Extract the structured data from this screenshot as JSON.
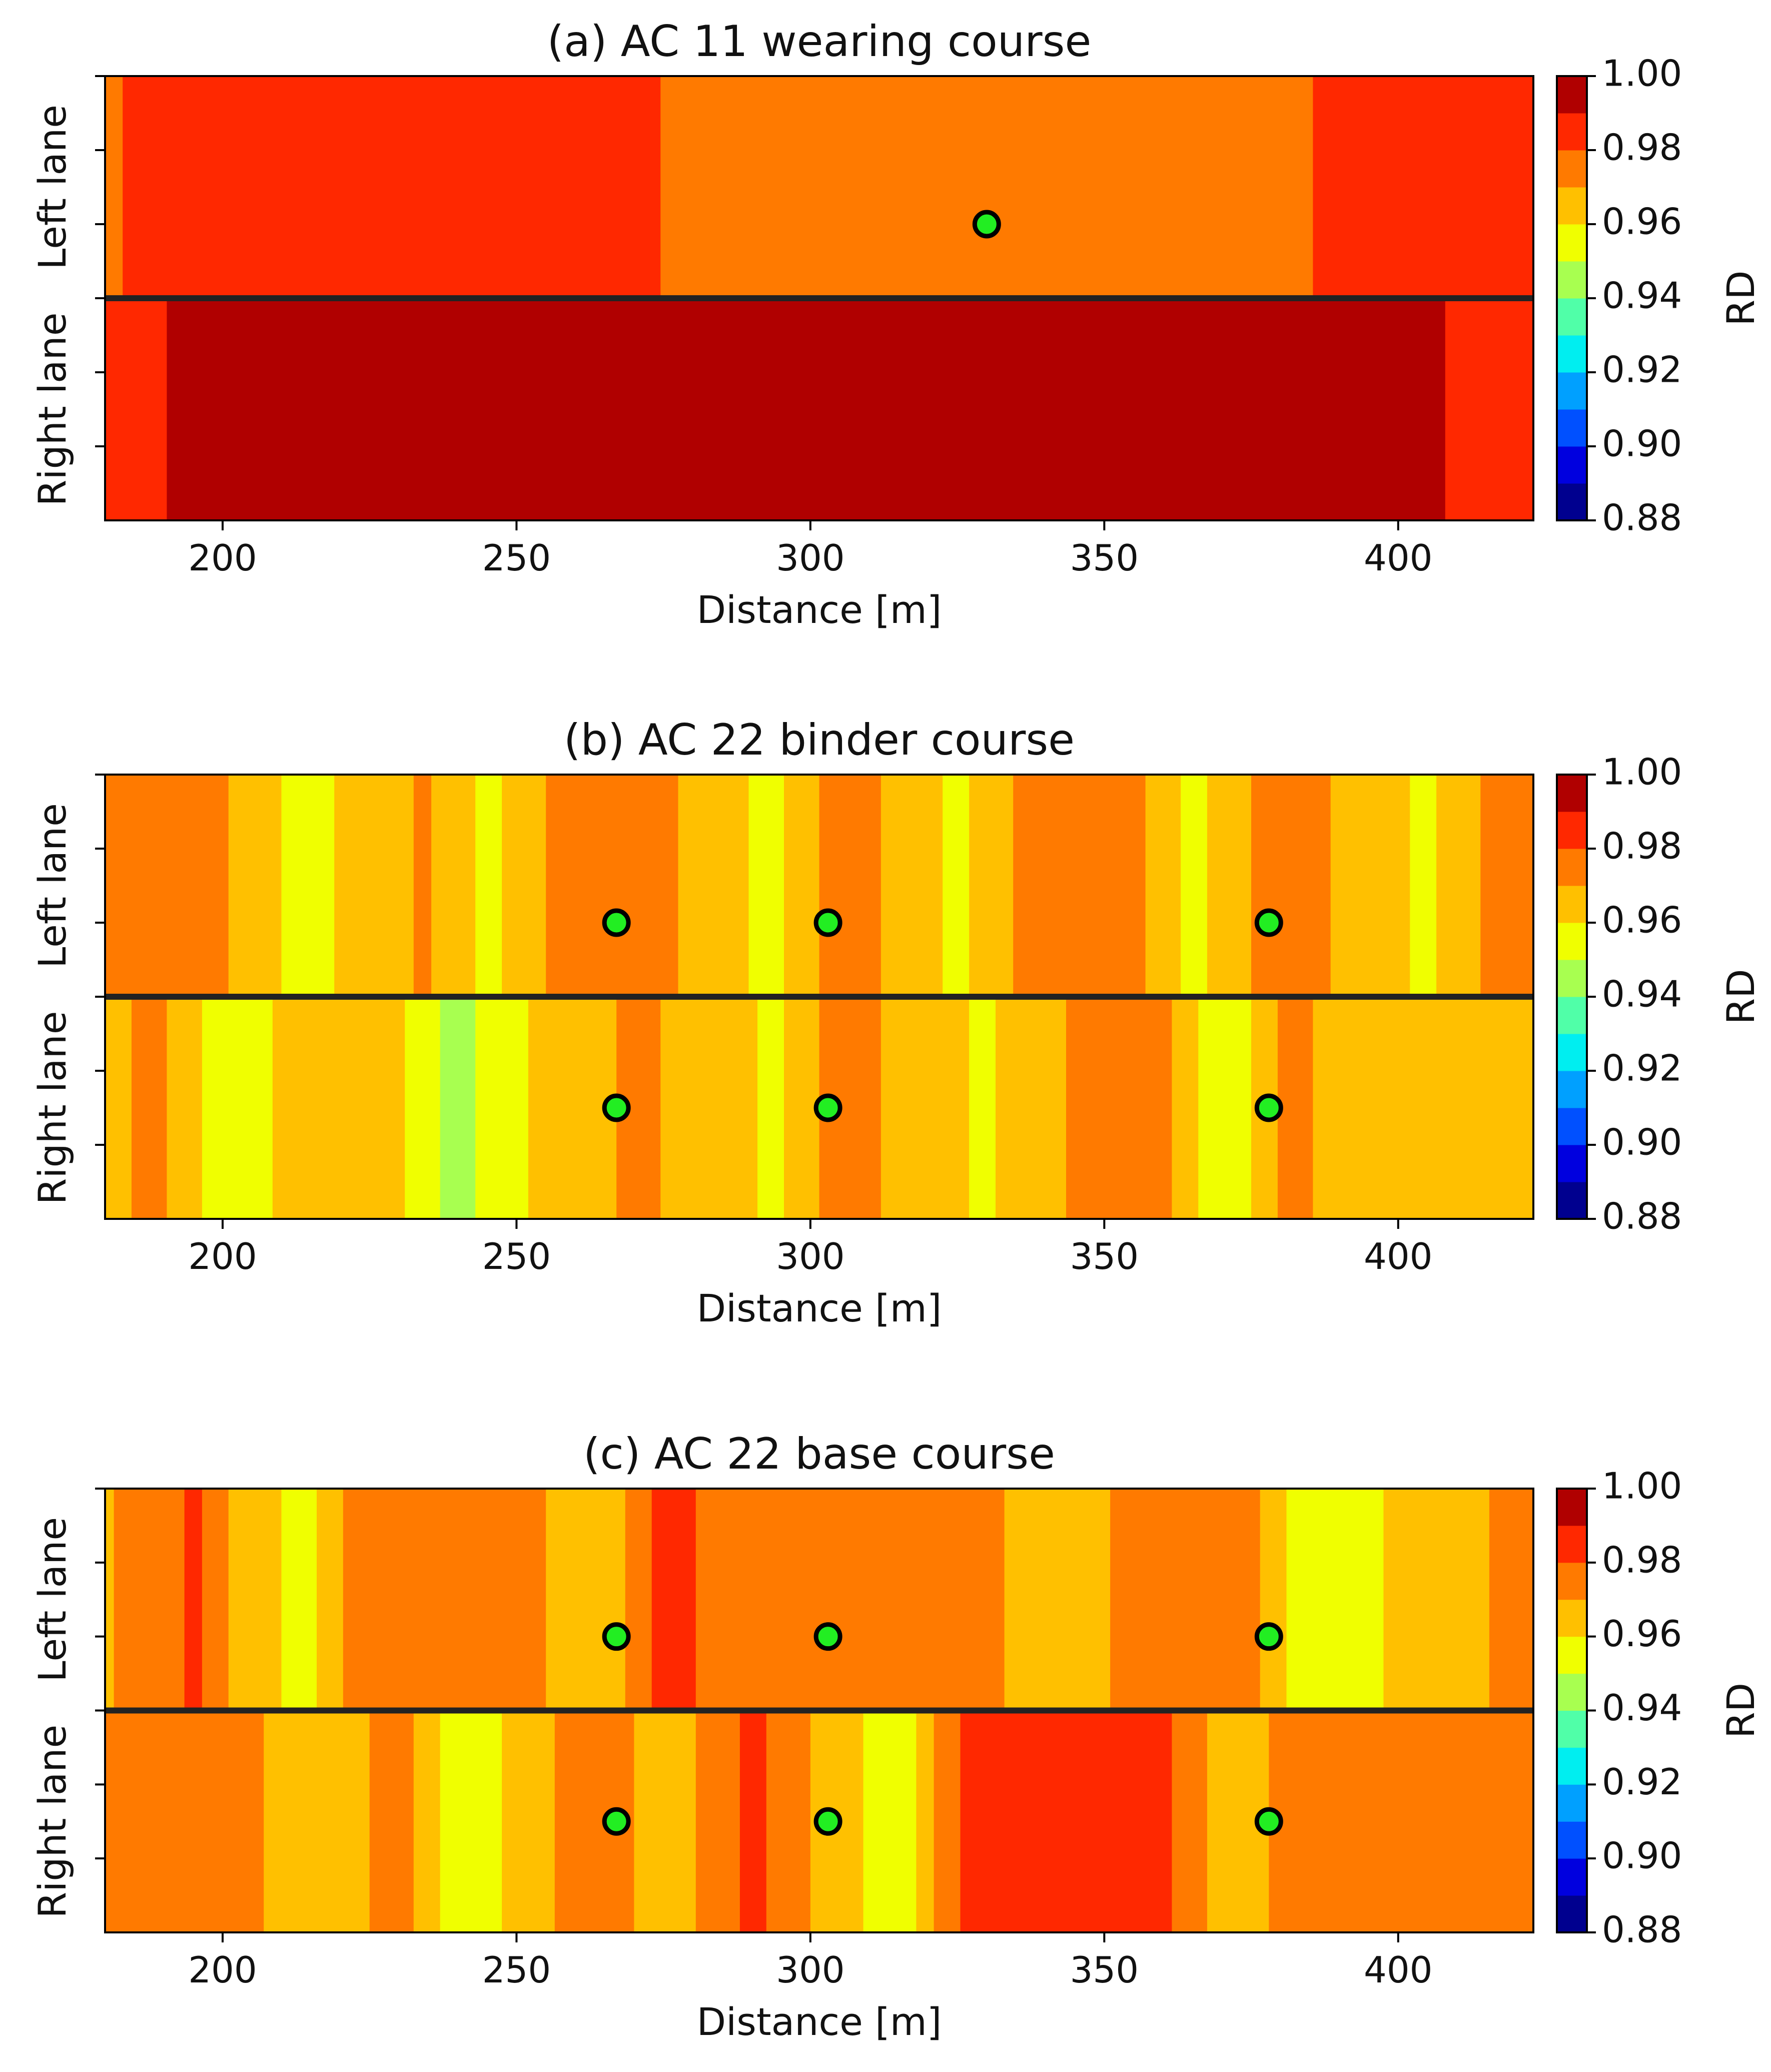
{
  "chart_data": [
    {
      "type": "heatmap",
      "subtype": "filled-contour",
      "title": "(a) AC 11 wearing course",
      "xlabel": "Distance [m]",
      "xlim": [
        180,
        423
      ],
      "xticks": [
        200,
        250,
        300,
        350,
        400
      ],
      "ylim": [
        0,
        3
      ],
      "y_category_labels": [
        "Left lane",
        "Right lane"
      ],
      "lane_divider_y": 1.5,
      "colorbar": {
        "label": "RD",
        "range": [
          0.88,
          1.0
        ],
        "step": 0.01,
        "ticks": [
          "1.00",
          "0.98",
          "0.96",
          "0.94",
          "0.92",
          "0.90",
          "0.88"
        ]
      },
      "lanes": {
        "left": {
          "profile": [
            [
              180,
              0.975
            ],
            [
              185,
              0.985
            ],
            [
              200,
              0.985
            ],
            [
              250,
              0.982
            ],
            [
              300,
              0.978
            ],
            [
              320,
              0.974
            ],
            [
              330,
              0.972
            ],
            [
              350,
              0.977
            ],
            [
              375,
              0.978
            ],
            [
              400,
              0.983
            ],
            [
              423,
              0.985
            ]
          ]
        },
        "right": {
          "profile": [
            [
              180,
              0.985
            ],
            [
              188,
              0.988
            ],
            [
              195,
              0.994
            ],
            [
              240,
              0.995
            ],
            [
              300,
              0.995
            ],
            [
              380,
              0.994
            ],
            [
              400,
              0.993
            ],
            [
              410,
              0.989
            ],
            [
              423,
              0.986
            ]
          ]
        }
      },
      "core_points": [
        {
          "x": 330,
          "lane": "Left lane"
        }
      ]
    },
    {
      "type": "heatmap",
      "subtype": "filled-contour",
      "title": "(b) AC 22 binder course",
      "xlabel": "Distance [m]",
      "xlim": [
        180,
        423
      ],
      "xticks": [
        200,
        250,
        300,
        350,
        400
      ],
      "ylim": [
        0,
        3
      ],
      "y_category_labels": [
        "Left lane",
        "Right lane"
      ],
      "lane_divider_y": 1.5,
      "colorbar": {
        "label": "RD",
        "range": [
          0.88,
          1.0
        ],
        "step": 0.01,
        "ticks": [
          "1.00",
          "0.98",
          "0.96",
          "0.94",
          "0.92",
          "0.90",
          "0.88"
        ]
      },
      "lanes": {
        "left": {
          "profile": [
            [
              180,
              0.97
            ],
            [
              190,
              0.976
            ],
            [
              200,
              0.972
            ],
            [
              212,
              0.958
            ],
            [
              225,
              0.962
            ],
            [
              235,
              0.972
            ],
            [
              245,
              0.956
            ],
            [
              260,
              0.976
            ],
            [
              270,
              0.978
            ],
            [
              285,
              0.962
            ],
            [
              295,
              0.958
            ],
            [
              305,
              0.975
            ],
            [
              318,
              0.965
            ],
            [
              325,
              0.958
            ],
            [
              340,
              0.976
            ],
            [
              355,
              0.972
            ],
            [
              365,
              0.958
            ],
            [
              380,
              0.975
            ],
            [
              395,
              0.966
            ],
            [
              405,
              0.958
            ],
            [
              415,
              0.972
            ],
            [
              423,
              0.974
            ]
          ]
        },
        "right": {
          "profile": [
            [
              180,
              0.968
            ],
            [
              190,
              0.972
            ],
            [
              200,
              0.952
            ],
            [
              210,
              0.962
            ],
            [
              225,
              0.968
            ],
            [
              240,
              0.946
            ],
            [
              255,
              0.964
            ],
            [
              270,
              0.972
            ],
            [
              282,
              0.966
            ],
            [
              295,
              0.958
            ],
            [
              305,
              0.975
            ],
            [
              318,
              0.966
            ],
            [
              330,
              0.958
            ],
            [
              345,
              0.972
            ],
            [
              360,
              0.975
            ],
            [
              370,
              0.95
            ],
            [
              380,
              0.972
            ],
            [
              395,
              0.967
            ],
            [
              410,
              0.962
            ],
            [
              423,
              0.96
            ]
          ]
        }
      },
      "core_points": [
        {
          "x": 267,
          "lane": "Left lane"
        },
        {
          "x": 303,
          "lane": "Left lane"
        },
        {
          "x": 378,
          "lane": "Left lane"
        },
        {
          "x": 267,
          "lane": "Right lane"
        },
        {
          "x": 303,
          "lane": "Right lane"
        },
        {
          "x": 378,
          "lane": "Right lane"
        }
      ]
    },
    {
      "type": "heatmap",
      "subtype": "filled-contour",
      "title": "(c) AC 22 base course",
      "xlabel": "Distance [m]",
      "xlim": [
        180,
        423
      ],
      "xticks": [
        200,
        250,
        300,
        350,
        400
      ],
      "ylim": [
        0,
        3
      ],
      "y_category_labels": [
        "Left lane",
        "Right lane"
      ],
      "lane_divider_y": 1.5,
      "colorbar": {
        "label": "RD",
        "range": [
          0.88,
          1.0
        ],
        "step": 0.01,
        "ticks": [
          "1.00",
          "0.98",
          "0.96",
          "0.94",
          "0.92",
          "0.90",
          "0.88"
        ]
      },
      "lanes": {
        "left": {
          "profile": [
            [
              180,
              0.968
            ],
            [
              195,
              0.982
            ],
            [
              205,
              0.962
            ],
            [
              215,
              0.958
            ],
            [
              225,
              0.978
            ],
            [
              245,
              0.978
            ],
            [
              255,
              0.97
            ],
            [
              265,
              0.962
            ],
            [
              275,
              0.984
            ],
            [
              290,
              0.972
            ],
            [
              300,
              0.976
            ],
            [
              315,
              0.974
            ],
            [
              330,
              0.972
            ],
            [
              345,
              0.962
            ],
            [
              360,
              0.98
            ],
            [
              375,
              0.975
            ],
            [
              385,
              0.952
            ],
            [
              400,
              0.962
            ],
            [
              415,
              0.97
            ],
            [
              423,
              0.974
            ]
          ]
        },
        "right": {
          "profile": [
            [
              180,
              0.972
            ],
            [
              200,
              0.978
            ],
            [
              215,
              0.96
            ],
            [
              230,
              0.976
            ],
            [
              240,
              0.952
            ],
            [
              255,
              0.968
            ],
            [
              265,
              0.978
            ],
            [
              275,
              0.962
            ],
            [
              290,
              0.982
            ],
            [
              315,
              0.954
            ],
            [
              325,
              0.98
            ],
            [
              360,
              0.982
            ],
            [
              372,
              0.962
            ],
            [
              385,
              0.98
            ],
            [
              410,
              0.98
            ],
            [
              423,
              0.978
            ]
          ]
        }
      },
      "core_points": [
        {
          "x": 267,
          "lane": "Left lane"
        },
        {
          "x": 303,
          "lane": "Left lane"
        },
        {
          "x": 378,
          "lane": "Left lane"
        },
        {
          "x": 267,
          "lane": "Right lane"
        },
        {
          "x": 303,
          "lane": "Right lane"
        },
        {
          "x": 378,
          "lane": "Right lane"
        }
      ]
    }
  ],
  "colorscale": [
    "#00008f",
    "#0000df",
    "#0050ff",
    "#00a0ff",
    "#00eef0",
    "#50ffa8",
    "#a8ff50",
    "#f0ff00",
    "#ffc000",
    "#ff7a00",
    "#ff2800",
    "#b00000"
  ]
}
